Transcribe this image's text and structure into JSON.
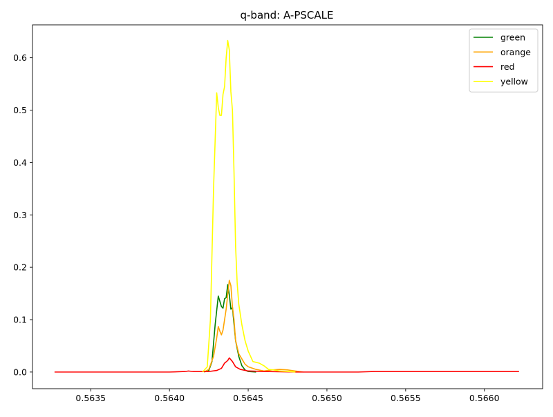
{
  "chart_data": {
    "type": "line",
    "title": "q-band: A-PSCALE",
    "xlabel": "",
    "ylabel": "",
    "xlim": [
      0.56313,
      0.56637
    ],
    "ylim": [
      -0.0318,
      0.6628
    ],
    "xticks": [
      0.5635,
      0.564,
      0.5645,
      0.565,
      0.5655,
      0.566
    ],
    "xtick_labels": [
      "0.5635",
      "0.5640",
      "0.5645",
      "0.5650",
      "0.5655",
      "0.5660"
    ],
    "yticks": [
      0.0,
      0.1,
      0.2,
      0.3,
      0.4,
      0.5,
      0.6
    ],
    "ytick_labels": [
      "0.0",
      "0.1",
      "0.2",
      "0.3",
      "0.4",
      "0.5",
      "0.6"
    ],
    "grid": false,
    "legend_position": "top-right",
    "series": [
      {
        "name": "green",
        "color": "#008000",
        "points": [
          [
            0.56422,
            0.0
          ],
          [
            0.56425,
            0.003
          ],
          [
            0.56427,
            0.02
          ],
          [
            0.56429,
            0.09
          ],
          [
            0.56431,
            0.145
          ],
          [
            0.56433,
            0.125
          ],
          [
            0.56434,
            0.122
          ],
          [
            0.56435,
            0.14
          ],
          [
            0.56436,
            0.142
          ],
          [
            0.56437,
            0.167
          ],
          [
            0.56438,
            0.148
          ],
          [
            0.56439,
            0.12
          ],
          [
            0.5644,
            0.123
          ],
          [
            0.56442,
            0.06
          ],
          [
            0.56444,
            0.03
          ],
          [
            0.56446,
            0.012
          ],
          [
            0.56448,
            0.004
          ],
          [
            0.5645,
            0.001
          ],
          [
            0.56455,
            0.0
          ]
        ]
      },
      {
        "name": "orange",
        "color": "#FFA500",
        "points": [
          [
            0.56422,
            0.0
          ],
          [
            0.56425,
            0.005
          ],
          [
            0.56428,
            0.03
          ],
          [
            0.5643,
            0.065
          ],
          [
            0.56431,
            0.087
          ],
          [
            0.56432,
            0.078
          ],
          [
            0.56433,
            0.071
          ],
          [
            0.56434,
            0.08
          ],
          [
            0.56436,
            0.12
          ],
          [
            0.56438,
            0.175
          ],
          [
            0.56439,
            0.165
          ],
          [
            0.5644,
            0.125
          ],
          [
            0.56441,
            0.1
          ],
          [
            0.56442,
            0.06
          ],
          [
            0.56444,
            0.035
          ],
          [
            0.56446,
            0.025
          ],
          [
            0.56448,
            0.015
          ],
          [
            0.5645,
            0.01
          ],
          [
            0.56455,
            0.005
          ],
          [
            0.5646,
            0.002
          ],
          [
            0.56465,
            0.004
          ],
          [
            0.5647,
            0.005
          ],
          [
            0.56475,
            0.004
          ],
          [
            0.5648,
            0.002
          ],
          [
            0.56485,
            0.0
          ]
        ]
      },
      {
        "name": "red",
        "color": "#FF0000",
        "points": [
          [
            0.56327,
            0.0
          ],
          [
            0.5636,
            0.0
          ],
          [
            0.5638,
            0.0
          ],
          [
            0.564,
            0.0
          ],
          [
            0.5641,
            0.001
          ],
          [
            0.56412,
            0.002
          ],
          [
            0.56415,
            0.001
          ],
          [
            0.5642,
            0.001
          ],
          [
            0.56425,
            0.001
          ],
          [
            0.5643,
            0.003
          ],
          [
            0.56433,
            0.007
          ],
          [
            0.56435,
            0.017
          ],
          [
            0.56437,
            0.022
          ],
          [
            0.56438,
            0.027
          ],
          [
            0.5644,
            0.02
          ],
          [
            0.56442,
            0.01
          ],
          [
            0.56445,
            0.005
          ],
          [
            0.5645,
            0.002
          ],
          [
            0.5646,
            0.001
          ],
          [
            0.5648,
            0.0
          ],
          [
            0.565,
            0.0
          ],
          [
            0.5652,
            0.0
          ],
          [
            0.5653,
            0.001
          ],
          [
            0.5655,
            0.001
          ],
          [
            0.5658,
            0.001
          ],
          [
            0.566,
            0.001
          ],
          [
            0.56622,
            0.001
          ]
        ]
      },
      {
        "name": "yellow",
        "color": "#FFFF00",
        "points": [
          [
            0.56421,
            0.0
          ],
          [
            0.56424,
            0.01
          ],
          [
            0.56426,
            0.1
          ],
          [
            0.56428,
            0.35
          ],
          [
            0.5643,
            0.533
          ],
          [
            0.56431,
            0.505
          ],
          [
            0.56432,
            0.49
          ],
          [
            0.56433,
            0.49
          ],
          [
            0.56434,
            0.53
          ],
          [
            0.56435,
            0.545
          ],
          [
            0.56436,
            0.6
          ],
          [
            0.56437,
            0.633
          ],
          [
            0.56438,
            0.615
          ],
          [
            0.56439,
            0.535
          ],
          [
            0.5644,
            0.5
          ],
          [
            0.56441,
            0.38
          ],
          [
            0.56442,
            0.24
          ],
          [
            0.56443,
            0.17
          ],
          [
            0.56444,
            0.13
          ],
          [
            0.56446,
            0.09
          ],
          [
            0.56448,
            0.06
          ],
          [
            0.5645,
            0.04
          ],
          [
            0.56453,
            0.02
          ],
          [
            0.56457,
            0.017
          ],
          [
            0.5646,
            0.012
          ],
          [
            0.56463,
            0.005
          ],
          [
            0.56466,
            0.004
          ],
          [
            0.5647,
            0.002
          ],
          [
            0.56475,
            0.001
          ],
          [
            0.5648,
            0.0
          ]
        ]
      }
    ]
  }
}
